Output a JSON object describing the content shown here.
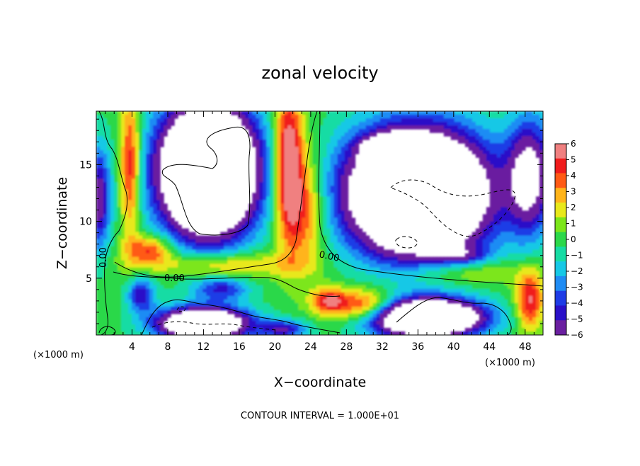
{
  "chart_data": {
    "type": "heatmap",
    "title": "zonal velocity",
    "xlabel": "X−coordinate",
    "ylabel": "Z−coordinate",
    "x_unit_label": "(×1000 m)",
    "y_unit_label": "(×1000 m)",
    "xlim": [
      0,
      50
    ],
    "ylim": [
      0,
      19.7
    ],
    "x_ticks": [
      4,
      8,
      12,
      16,
      20,
      24,
      28,
      32,
      36,
      40,
      44,
      48
    ],
    "y_ticks": [
      5,
      10,
      15
    ],
    "color_scale": {
      "min": -6,
      "max": 6,
      "tick_labels": [
        "6",
        "5",
        "4",
        "3",
        "2",
        "1",
        "0",
        "−1",
        "−2",
        "−3",
        "−4",
        "−5",
        "−6"
      ],
      "colors": [
        "#6a1fa0",
        "#2a10c8",
        "#1e3ce6",
        "#1f8cf4",
        "#16c8e6",
        "#17dca4",
        "#2cd84a",
        "#7ce61a",
        "#e8e81a",
        "#ffb41a",
        "#ff5a14",
        "#f01c1c",
        "#f08080"
      ],
      "out_of_range_color": "#ffffff"
    },
    "contour_label": "0.00",
    "contour_interval_text": "CONTOUR INTERVAL = 1.000E+01",
    "features": [
      {
        "kind": "positive_jet",
        "x_range": [
          19.5,
          25
        ],
        "z_range": [
          6.5,
          19.7
        ],
        "peak": 6
      },
      {
        "kind": "positive_band",
        "x_range": [
          2,
          6
        ],
        "z_range": [
          6,
          19.7
        ],
        "peak": 4
      },
      {
        "kind": "negative_core",
        "x_range": [
          0,
          2
        ],
        "z_range": [
          8,
          16
        ],
        "peak": -5
      },
      {
        "kind": "negative_core",
        "x_range": [
          44,
          50
        ],
        "z_range": [
          8,
          19.7
        ],
        "peak": -5
      },
      {
        "kind": "negative_blob",
        "x_range": [
          29,
          36
        ],
        "z_range": [
          15,
          17.5
        ],
        "peak": -6
      },
      {
        "kind": "surface_positive",
        "x_range": [
          26,
          36
        ],
        "z_range": [
          0,
          4
        ],
        "peak": 5
      },
      {
        "kind": "surface_positive",
        "x_range": [
          46,
          50
        ],
        "z_range": [
          0,
          5
        ],
        "peak": 4
      }
    ]
  }
}
